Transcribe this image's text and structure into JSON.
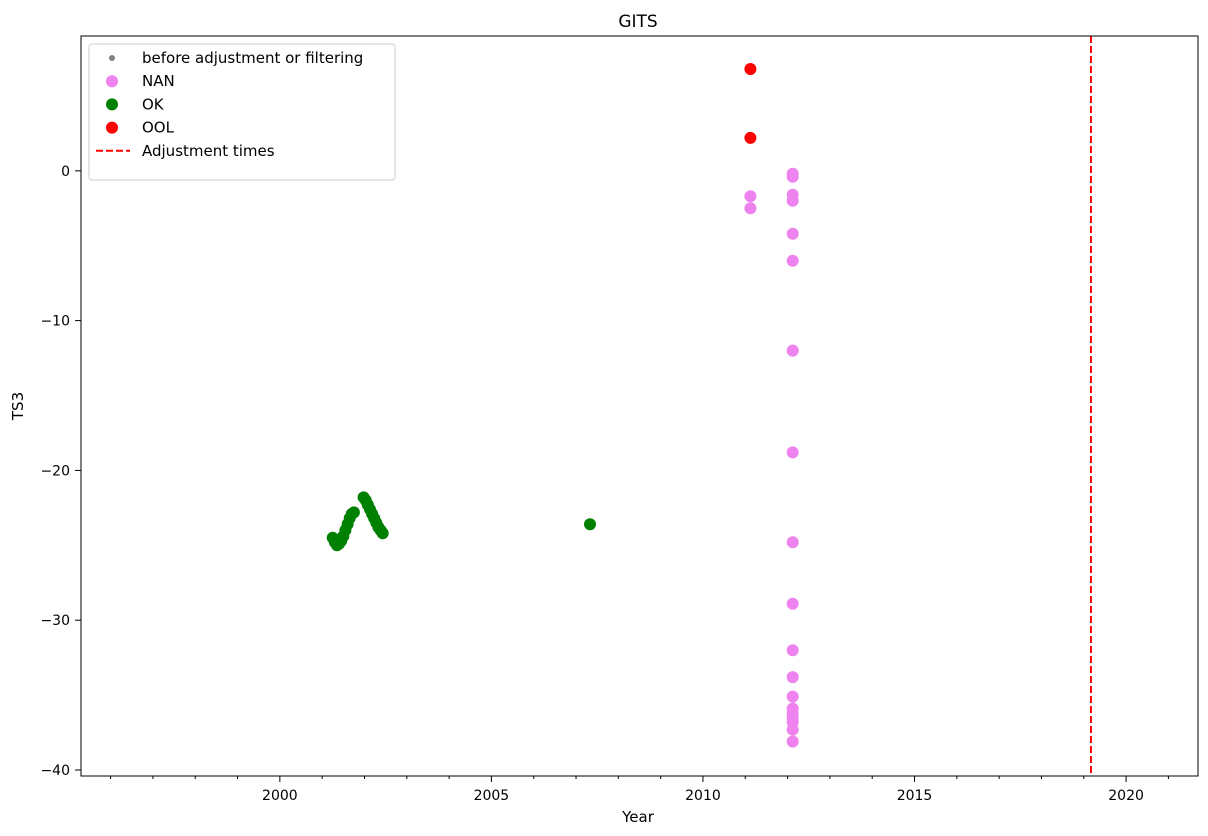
{
  "chart_data": {
    "type": "scatter",
    "title": "GITS",
    "xlabel": "Year",
    "ylabel": "TS3",
    "xlim": [
      1995.3,
      2021.7
    ],
    "ylim": [
      -40.4,
      9.0
    ],
    "xticks": [
      2000,
      2005,
      2010,
      2015,
      2020
    ],
    "xtick_labels": [
      "2000",
      "2005",
      "2010",
      "2015",
      "2020"
    ],
    "yticks": [
      0,
      -10,
      -20,
      -30,
      -40
    ],
    "ytick_labels": [
      "0",
      "−10",
      "−20",
      "−30",
      "−40"
    ],
    "grid": false,
    "legend_position": "top-left",
    "legend": [
      {
        "label": "before adjustment or filtering",
        "marker": "dot",
        "color": "#808080"
      },
      {
        "label": "NAN",
        "marker": "circle",
        "color": "#ee82ee"
      },
      {
        "label": "OK",
        "marker": "circle",
        "color": "#008000"
      },
      {
        "label": "OOL",
        "marker": "circle",
        "color": "#ff0000"
      },
      {
        "label": "Adjustment times",
        "marker": "dashed-line",
        "color": "#ff0000"
      }
    ],
    "series": [
      {
        "name": "NAN",
        "color": "#ee82ee",
        "points": [
          [
            2011.12,
            -1.7
          ],
          [
            2011.12,
            -2.5
          ],
          [
            2012.12,
            -0.2
          ],
          [
            2012.12,
            -0.4
          ],
          [
            2012.12,
            -1.6
          ],
          [
            2012.12,
            -2.0
          ],
          [
            2012.12,
            -4.2
          ],
          [
            2012.12,
            -6.0
          ],
          [
            2012.12,
            -12.0
          ],
          [
            2012.12,
            -18.8
          ],
          [
            2012.12,
            -24.8
          ],
          [
            2012.12,
            -28.9
          ],
          [
            2012.12,
            -32.0
          ],
          [
            2012.12,
            -33.8
          ],
          [
            2012.12,
            -35.1
          ],
          [
            2012.12,
            -35.9
          ],
          [
            2012.12,
            -36.2
          ],
          [
            2012.12,
            -36.5
          ],
          [
            2012.12,
            -36.8
          ],
          [
            2012.12,
            -37.3
          ],
          [
            2012.12,
            -38.1
          ]
        ]
      },
      {
        "name": "OK",
        "color": "#008000",
        "points": [
          [
            2001.25,
            -24.5
          ],
          [
            2001.3,
            -24.8
          ],
          [
            2001.35,
            -25.0
          ],
          [
            2001.4,
            -24.9
          ],
          [
            2001.45,
            -24.7
          ],
          [
            2001.5,
            -24.4
          ],
          [
            2001.55,
            -24.0
          ],
          [
            2001.6,
            -23.6
          ],
          [
            2001.65,
            -23.2
          ],
          [
            2001.7,
            -22.9
          ],
          [
            2001.75,
            -22.8
          ],
          [
            2001.98,
            -21.8
          ],
          [
            2002.03,
            -22.0
          ],
          [
            2002.08,
            -22.3
          ],
          [
            2002.13,
            -22.6
          ],
          [
            2002.18,
            -22.9
          ],
          [
            2002.23,
            -23.2
          ],
          [
            2002.28,
            -23.5
          ],
          [
            2002.33,
            -23.8
          ],
          [
            2002.38,
            -24.0
          ],
          [
            2002.43,
            -24.2
          ],
          [
            2007.33,
            -23.6
          ]
        ]
      },
      {
        "name": "OOL",
        "color": "#ff0000",
        "points": [
          [
            2011.12,
            6.8
          ],
          [
            2011.12,
            2.2
          ]
        ]
      }
    ],
    "adjustment_times": [
      2019.17
    ],
    "adjustment_color": "#ff0000"
  }
}
